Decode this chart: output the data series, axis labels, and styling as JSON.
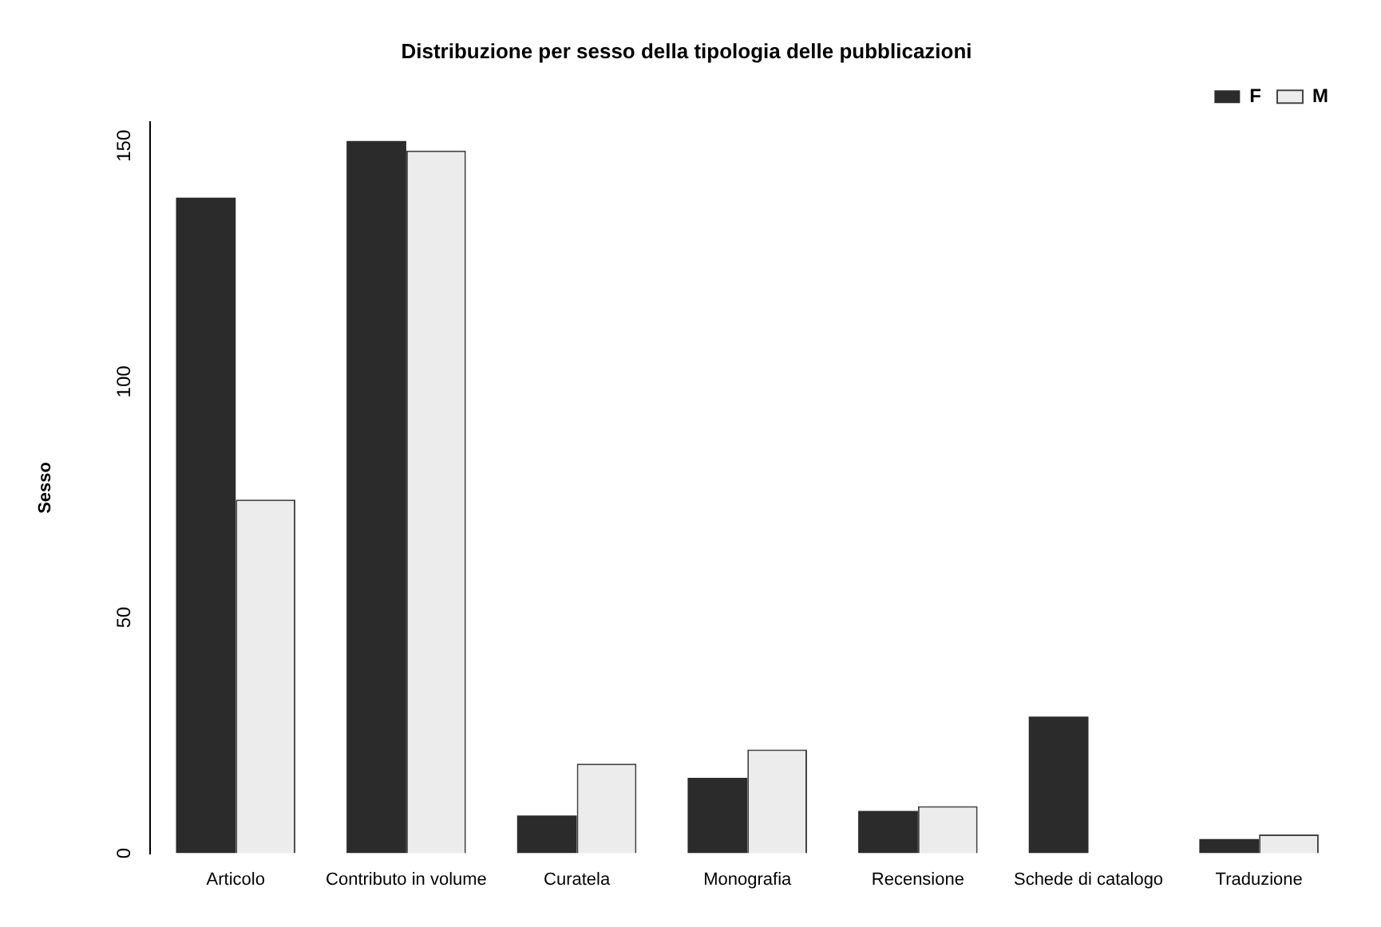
{
  "chart_data": {
    "type": "bar",
    "title": "Distribuzione per sesso della tipologia delle pubblicazioni",
    "ylabel": "Sesso",
    "categories": [
      "Articolo",
      "Contributo in volume",
      "Curatela",
      "Monografia",
      "Recensione",
      "Schede di catalogo",
      "Traduzione"
    ],
    "series": [
      {
        "name": "F",
        "color": "#2b2b2b",
        "values": [
          139,
          151,
          8,
          16,
          9,
          29,
          3
        ]
      },
      {
        "name": "M",
        "color": "#ececec",
        "values": [
          75,
          149,
          19,
          22,
          10,
          0,
          4
        ]
      }
    ],
    "ylim": [
      0,
      155
    ],
    "yticks": [
      0,
      50,
      100,
      150
    ],
    "grid": false,
    "legend": "top right"
  }
}
